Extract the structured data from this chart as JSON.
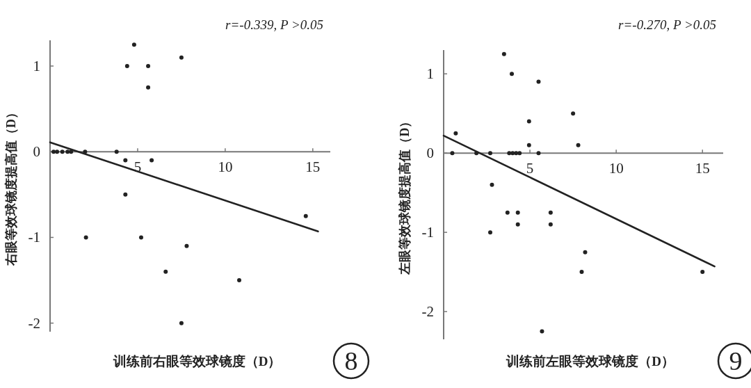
{
  "chart_data": [
    {
      "type": "scatter",
      "xlabel": "训练前右眼等效球镜度（D）",
      "ylabel": "右眼等效球镜度提高值（D）",
      "xlim": [
        0,
        16
      ],
      "ylim": [
        -2.1,
        1.3
      ],
      "xticks": [
        5,
        10,
        15
      ],
      "yticks": [
        -2,
        -1,
        0,
        1
      ],
      "annotations": [
        "r=-0.339, P >0.05",
        "8"
      ],
      "series": [
        {
          "type": "scatter",
          "marker": "circle",
          "color": "#222222",
          "x": [
            4.8,
            4.4,
            5.6,
            5.6,
            7.5,
            0.2,
            0.4,
            0.7,
            1.0,
            1.2,
            2.0,
            3.8,
            4.3,
            5.8,
            4.3,
            2.05,
            5.2,
            7.8,
            6.6,
            10.8,
            7.5,
            14.6
          ],
          "values": [
            1.25,
            1,
            1,
            0.75,
            1.1,
            0,
            0,
            0,
            0,
            0,
            0,
            0,
            -0.1,
            -0.1,
            -0.5,
            -1,
            -1,
            -1.1,
            -1.4,
            -1.5,
            -2,
            -0.75
          ]
        },
        {
          "type": "line",
          "color": "#222222",
          "x": [
            0,
            15.3
          ],
          "values": [
            0.11,
            -0.93
          ]
        }
      ]
    },
    {
      "type": "scatter",
      "xlabel": "训练前左眼等效球镜度（D）",
      "ylabel": "左眼等效球镜度提高值（D）",
      "xlim": [
        0,
        16.2
      ],
      "ylim": [
        -2.35,
        1.3
      ],
      "xticks": [
        5,
        10,
        15
      ],
      "yticks": [
        -2,
        -1,
        0,
        1
      ],
      "annotations": [
        "r=-0.270, P >0.05",
        "9"
      ],
      "series": [
        {
          "type": "scatter",
          "marker": "circle",
          "color": "#222222",
          "x": [
            3.5,
            3.95,
            5.5,
            7.5,
            4.95,
            0.7,
            4.95,
            7.8,
            0.5,
            1.9,
            2.7,
            3.8,
            4.0,
            4.2,
            4.4,
            5.5,
            2.8,
            3.7,
            4.3,
            6.2,
            4.3,
            6.2,
            2.7,
            8.2,
            8.0,
            15,
            5.7
          ],
          "values": [
            1.25,
            1,
            0.9,
            0.5,
            0.4,
            0.25,
            0.1,
            0.1,
            0,
            0,
            0,
            0,
            0,
            0,
            0,
            0,
            -0.4,
            -0.75,
            -0.75,
            -0.75,
            -0.9,
            -0.9,
            -1,
            -1.25,
            -1.5,
            -1.5,
            -2.25
          ]
        },
        {
          "type": "line",
          "color": "#222222",
          "x": [
            0,
            15.7
          ],
          "values": [
            0.22,
            -1.43
          ]
        }
      ]
    }
  ]
}
